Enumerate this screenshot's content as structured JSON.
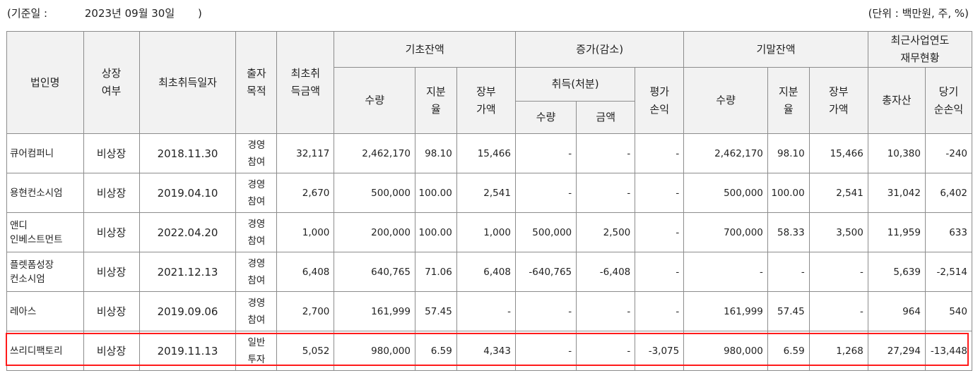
{
  "header": {
    "base_label": "(기준일 :",
    "base_date": "2023년 09월 30일",
    "base_close": ")",
    "unit": "(단위 : 백만원, 주, %)"
  },
  "columns": {
    "company": "법인명",
    "listed_1": "상장",
    "listed_2": "여부",
    "first_date": "최초취득일자",
    "purpose_1": "출자",
    "purpose_2": "목적",
    "first_amt_1": "최초취",
    "first_amt_2": "득금액",
    "opening": "기초잔액",
    "change": "증가(감소)",
    "closing": "기말잔액",
    "fin_1": "최근사업연도",
    "fin_2": "재무현황",
    "qty": "수량",
    "share_1": "지분",
    "share_2": "율",
    "book_1": "장부",
    "book_2": "가액",
    "acq": "취득(처분)",
    "eval_1": "평가",
    "eval_2": "손익",
    "amount": "금액",
    "total_assets": "총자산",
    "net_1": "당기",
    "net_2": "순손익"
  },
  "rows": [
    {
      "name1": "큐어컴퍼니",
      "name2": "",
      "listed": "비상장",
      "date": "2018.11.30",
      "purpose1": "경영",
      "purpose2": "참여",
      "first_amt": "32,117",
      "open_qty": "2,462,170",
      "open_share": "98.10",
      "open_book": "15,466",
      "acq_qty": "-",
      "acq_amt": "-",
      "eval": "-",
      "close_qty": "2,462,170",
      "close_share": "98.10",
      "close_book": "15,466",
      "assets": "10,380",
      "net": "-240"
    },
    {
      "name1": "용현컨소시엄",
      "name2": "",
      "listed": "비상장",
      "date": "2019.04.10",
      "purpose1": "경영",
      "purpose2": "참여",
      "first_amt": "2,670",
      "open_qty": "500,000",
      "open_share": "100.00",
      "open_book": "2,541",
      "acq_qty": "-",
      "acq_amt": "-",
      "eval": "-",
      "close_qty": "500,000",
      "close_share": "100.00",
      "close_book": "2,541",
      "assets": "31,042",
      "net": "6,402"
    },
    {
      "name1": "앤디",
      "name2": "인베스트먼트",
      "listed": "비상장",
      "date": "2022.04.20",
      "purpose1": "경영",
      "purpose2": "참여",
      "first_amt": "1,000",
      "open_qty": "200,000",
      "open_share": "100.00",
      "open_book": "1,000",
      "acq_qty": "500,000",
      "acq_amt": "2,500",
      "eval": "-",
      "close_qty": "700,000",
      "close_share": "58.33",
      "close_book": "3,500",
      "assets": "11,959",
      "net": "633"
    },
    {
      "name1": "플렛폼성장",
      "name2": "컨소시엄",
      "listed": "비상장",
      "date": "2021.12.13",
      "purpose1": "경영",
      "purpose2": "참여",
      "first_amt": "6,408",
      "open_qty": "640,765",
      "open_share": "71.06",
      "open_book": "6,408",
      "acq_qty": "-640,765",
      "acq_amt": "-6,408",
      "eval": "-",
      "close_qty": "-",
      "close_share": "-",
      "close_book": "-",
      "assets": "5,639",
      "net": "-2,514"
    },
    {
      "name1": "레아스",
      "name2": "",
      "listed": "비상장",
      "date": "2019.09.06",
      "purpose1": "경영",
      "purpose2": "참여",
      "first_amt": "2,700",
      "open_qty": "161,999",
      "open_share": "57.45",
      "open_book": "-",
      "acq_qty": "-",
      "acq_amt": "-",
      "eval": "-",
      "close_qty": "161,999",
      "close_share": "57.45",
      "close_book": "-",
      "assets": "964",
      "net": "540"
    },
    {
      "name1": "쓰리디팩토리",
      "name2": "",
      "listed": "비상장",
      "date": "2019.11.13",
      "purpose1": "일반",
      "purpose2": "투자",
      "first_amt": "5,052",
      "open_qty": "980,000",
      "open_share": "6.59",
      "open_book": "4,343",
      "acq_qty": "-",
      "acq_amt": "-",
      "eval": "-3,075",
      "close_qty": "980,000",
      "close_share": "6.59",
      "close_book": "1,268",
      "assets": "27,294",
      "net": "-13,448"
    }
  ],
  "highlight_color": "#ff1a1a"
}
